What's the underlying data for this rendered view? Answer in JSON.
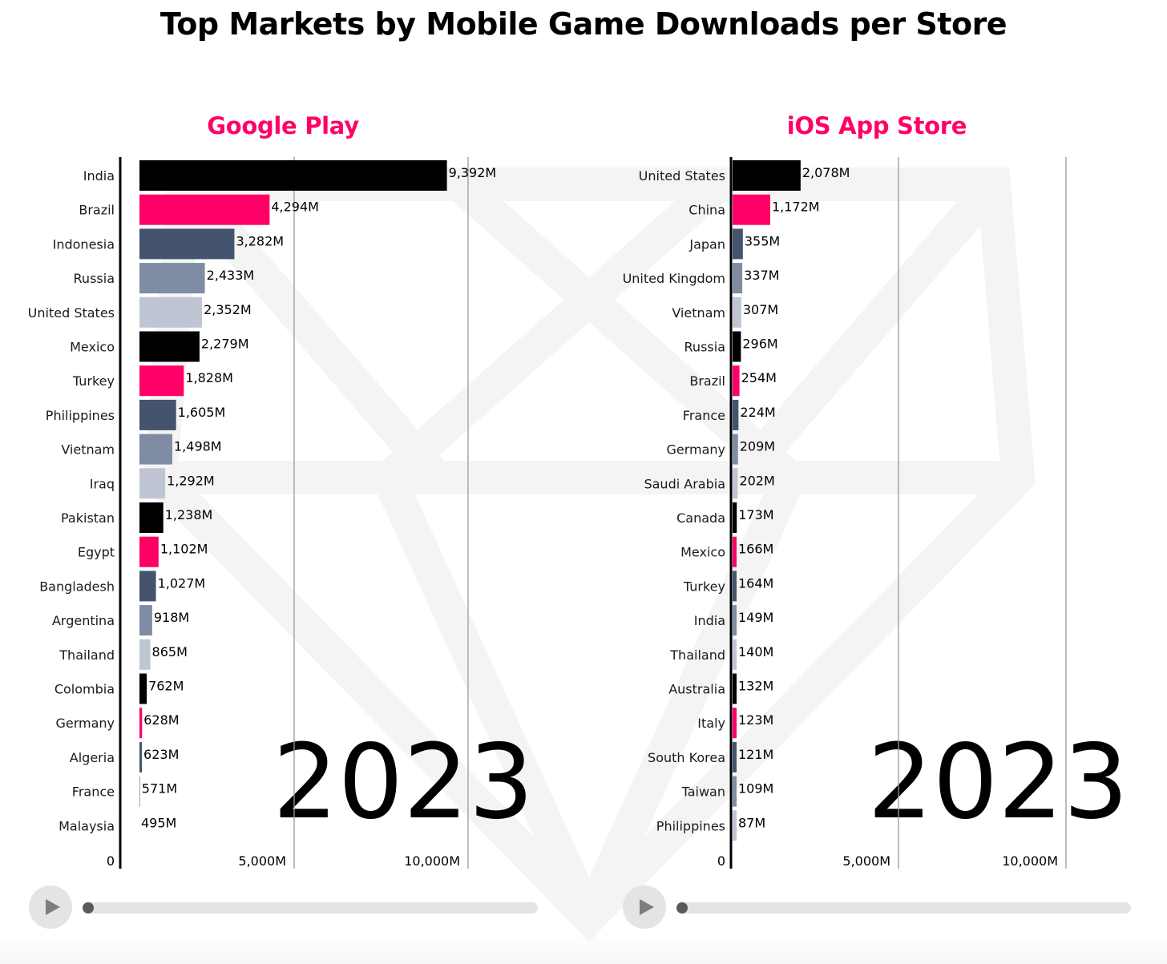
{
  "title": "Top Markets by Mobile Game Downloads per Store",
  "palette": [
    "#000000",
    "#ff0066",
    "#44546f",
    "#7f8ca3",
    "#bfc5d2"
  ],
  "accent_color": "#ff0066",
  "chart_data": [
    {
      "type": "bar",
      "orientation": "horizontal",
      "title": "Google Play",
      "year": "2023",
      "unit": "M",
      "categories": [
        "India",
        "Brazil",
        "Indonesia",
        "Russia",
        "United States",
        "Mexico",
        "Turkey",
        "Philippines",
        "Vietnam",
        "Iraq",
        "Pakistan",
        "Egypt",
        "Bangladesh",
        "Argentina",
        "Thailand",
        "Colombia",
        "Germany",
        "Algeria",
        "France",
        "Malaysia"
      ],
      "values": [
        9392,
        4294,
        3282,
        2433,
        2352,
        2279,
        1828,
        1605,
        1498,
        1292,
        1238,
        1102,
        1027,
        918,
        865,
        762,
        628,
        623,
        571,
        495
      ],
      "value_labels": [
        "9,392M",
        "4,294M",
        "3,282M",
        "2,433M",
        "2,352M",
        "2,279M",
        "1,828M",
        "1,605M",
        "1,498M",
        "1,292M",
        "1,238M",
        "1,102M",
        "1,027M",
        "918M",
        "865M",
        "762M",
        "628M",
        "623M",
        "571M",
        "495M"
      ],
      "xlim": [
        0,
        12000
      ],
      "xticks": [
        0,
        5000,
        10000
      ],
      "xtick_labels": [
        "0",
        "5,000M",
        "10,000M"
      ],
      "grid": true,
      "xlabel": "",
      "ylabel": ""
    },
    {
      "type": "bar",
      "orientation": "horizontal",
      "title": "iOS App Store",
      "year": "2023",
      "unit": "M",
      "categories": [
        "United States",
        "China",
        "Japan",
        "United Kingdom",
        "Vietnam",
        "Russia",
        "Brazil",
        "France",
        "Germany",
        "Saudi Arabia",
        "Canada",
        "Mexico",
        "Turkey",
        "India",
        "Thailand",
        "Australia",
        "Italy",
        "South Korea",
        "Taiwan",
        "Philippines"
      ],
      "values": [
        2078,
        1172,
        355,
        337,
        307,
        296,
        254,
        224,
        209,
        202,
        173,
        166,
        164,
        149,
        140,
        132,
        123,
        121,
        109,
        87
      ],
      "value_labels": [
        "2,078M",
        "1,172M",
        "355M",
        "337M",
        "307M",
        "296M",
        "254M",
        "224M",
        "209M",
        "202M",
        "173M",
        "166M",
        "164M",
        "149M",
        "140M",
        "132M",
        "123M",
        "121M",
        "109M",
        "87M"
      ],
      "xlim": [
        0,
        12000
      ],
      "xticks": [
        0,
        5000,
        10000
      ],
      "xtick_labels": [
        "0",
        "5,000M",
        "10,000M"
      ],
      "grid": true,
      "xlabel": "",
      "ylabel": ""
    }
  ],
  "players": [
    {
      "play_icon": "play-icon",
      "progress": 0
    },
    {
      "play_icon": "play-icon",
      "progress": 0
    }
  ]
}
